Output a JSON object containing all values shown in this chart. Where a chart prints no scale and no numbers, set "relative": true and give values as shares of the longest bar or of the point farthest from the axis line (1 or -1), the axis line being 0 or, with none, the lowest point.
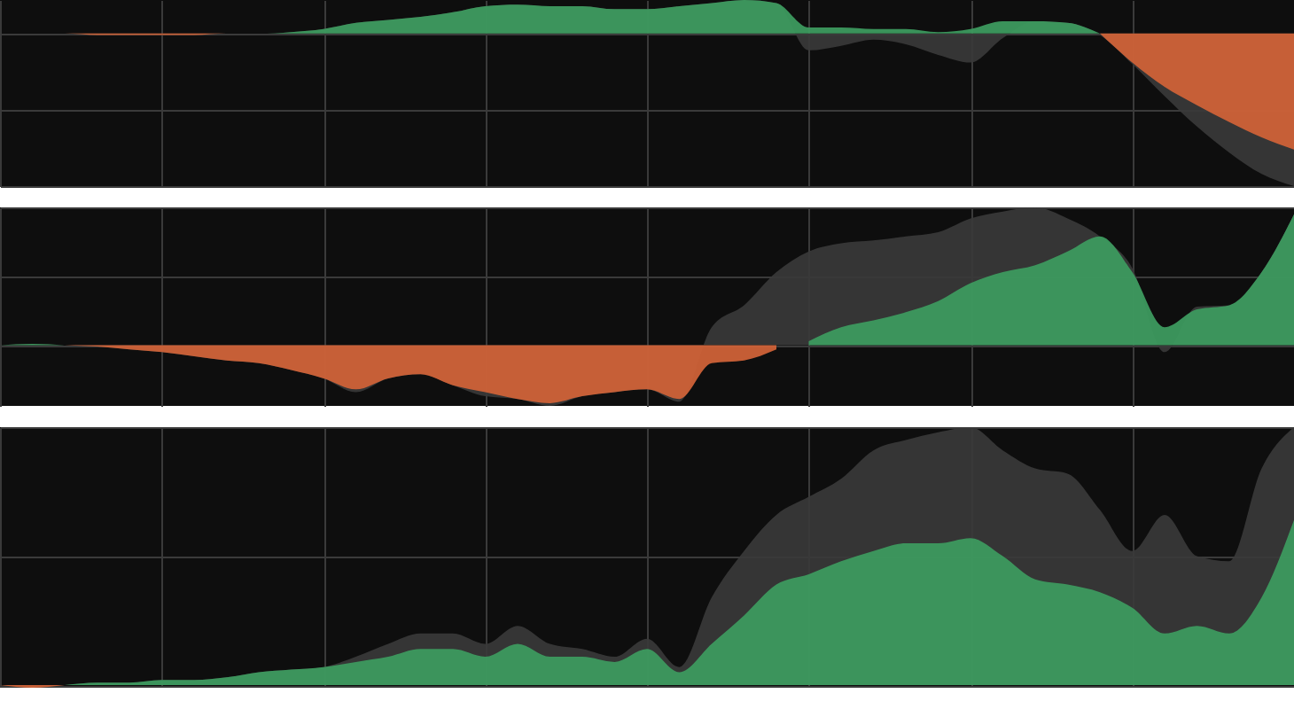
{
  "chart_data": [
    {
      "type": "area",
      "relative": true,
      "grid": true,
      "tick_labels": false,
      "categories": [
        null,
        null,
        null,
        null,
        null,
        null,
        null,
        null,
        null,
        null,
        null,
        null,
        null,
        null,
        null,
        null,
        null,
        null,
        null,
        null,
        null,
        null,
        null,
        null,
        null,
        null,
        null,
        null,
        null,
        null,
        null,
        null,
        null,
        null,
        null,
        null,
        null,
        null,
        null,
        null,
        null
      ],
      "series": [
        {
          "color": "#3a3a3a",
          "values": [
            0,
            0,
            0,
            -0.01,
            -0.01,
            -0.01,
            -0.01,
            0,
            0,
            0.01,
            0.03,
            0.07,
            0.09,
            0.11,
            0.14,
            0.18,
            0.19,
            0.18,
            0.18,
            0.16,
            0.16,
            0.18,
            0.2,
            0.22,
            0.2,
            -0.11,
            -0.08,
            -0.04,
            -0.07,
            -0.14,
            -0.19,
            -0.03,
            0.08,
            0.07,
            -0.01,
            -0.2,
            -0.41,
            -0.61,
            -0.78,
            -0.92,
            -1
          ]
        },
        {
          "color": "#3d9a5f",
          "values": [
            null,
            null,
            null,
            null,
            null,
            null,
            null,
            0,
            0,
            0.01,
            0.03,
            0.07,
            0.09,
            0.11,
            0.14,
            0.18,
            0.19,
            0.18,
            0.18,
            0.16,
            0.16,
            0.18,
            0.2,
            0.22,
            0.2,
            0.04,
            0.04,
            0.03,
            0.03,
            0.01,
            0.03,
            0.08,
            0.08,
            0.07,
            0,
            null,
            null,
            null,
            null,
            null,
            null
          ]
        },
        {
          "color": "#cf6238",
          "values": [
            0,
            0,
            0,
            -0.01,
            -0.01,
            -0.01,
            -0.01,
            0,
            0,
            null,
            null,
            null,
            null,
            null,
            null,
            null,
            null,
            null,
            null,
            null,
            null,
            null,
            null,
            null,
            null,
            null,
            null,
            null,
            null,
            null,
            null,
            null,
            null,
            null,
            0,
            -0.19,
            -0.35,
            -0.47,
            -0.58,
            -0.68,
            -0.76
          ]
        }
      ]
    },
    {
      "type": "area",
      "relative": true,
      "grid": true,
      "tick_labels": false,
      "categories": [
        null,
        null,
        null,
        null,
        null,
        null,
        null,
        null,
        null,
        null,
        null,
        null,
        null,
        null,
        null,
        null,
        null,
        null,
        null,
        null,
        null,
        null,
        null,
        null,
        null,
        null,
        null,
        null,
        null,
        null,
        null,
        null,
        null,
        null,
        null,
        null,
        null,
        null,
        null,
        null,
        null
      ],
      "series": [
        {
          "color": "#3a3a3a",
          "values": [
            0,
            0.01,
            0,
            -0.01,
            -0.03,
            -0.05,
            -0.08,
            -0.11,
            -0.13,
            -0.18,
            -0.24,
            -0.34,
            -0.24,
            -0.21,
            -0.29,
            -0.37,
            -0.39,
            -0.44,
            -0.37,
            -0.34,
            -0.32,
            -0.41,
            0.13,
            0.29,
            0.53,
            0.68,
            0.74,
            0.76,
            0.79,
            0.82,
            0.92,
            0.97,
            1,
            0.92,
            0.79,
            0.56,
            -0.05,
            0.28,
            0.29,
            0.53,
            0.95
          ]
        },
        {
          "color": "#3d9a5f",
          "values": [
            0,
            0.01,
            0,
            null,
            null,
            null,
            null,
            null,
            null,
            null,
            null,
            null,
            null,
            null,
            null,
            null,
            null,
            null,
            null,
            null,
            null,
            null,
            null,
            null,
            null,
            0.03,
            0.13,
            0.18,
            0.24,
            0.32,
            0.45,
            0.53,
            0.58,
            0.68,
            0.79,
            0.53,
            0.13,
            0.26,
            0.29,
            0.53,
            0.95
          ]
        },
        {
          "color": "#cf6238",
          "values": [
            null,
            null,
            0,
            -0.01,
            -0.03,
            -0.05,
            -0.08,
            -0.11,
            -0.13,
            -0.18,
            -0.24,
            -0.32,
            -0.24,
            -0.21,
            -0.29,
            -0.34,
            -0.39,
            -0.42,
            -0.37,
            -0.34,
            -0.32,
            -0.39,
            -0.13,
            -0.11,
            -0.03,
            null,
            null,
            null,
            null,
            null,
            null,
            null,
            null,
            null,
            null,
            null,
            null,
            null,
            null,
            null,
            null
          ]
        }
      ]
    },
    {
      "type": "area",
      "relative": true,
      "grid": true,
      "tick_labels": false,
      "categories": [
        null,
        null,
        null,
        null,
        null,
        null,
        null,
        null,
        null,
        null,
        null,
        null,
        null,
        null,
        null,
        null,
        null,
        null,
        null,
        null,
        null,
        null,
        null,
        null,
        null,
        null,
        null,
        null,
        null,
        null,
        null,
        null,
        null,
        null,
        null,
        null,
        null,
        null,
        null,
        null,
        null
      ],
      "series": [
        {
          "color": "#3a3a3a",
          "values": [
            0,
            -0.01,
            0,
            0.01,
            0.01,
            0.02,
            0.02,
            0.03,
            0.05,
            0.06,
            0.07,
            0.11,
            0.16,
            0.2,
            0.2,
            0.16,
            0.23,
            0.16,
            0.14,
            0.11,
            0.18,
            0.07,
            0.34,
            0.52,
            0.66,
            0.73,
            0.8,
            0.91,
            0.95,
            0.98,
            1,
            0.91,
            0.84,
            0.82,
            0.68,
            0.52,
            0.66,
            0.5,
            0.48,
            0.84,
            1
          ]
        },
        {
          "color": "#3d9a5f",
          "values": [
            null,
            null,
            0,
            0.01,
            0.01,
            0.02,
            0.02,
            0.03,
            0.05,
            0.06,
            0.07,
            0.09,
            0.11,
            0.14,
            0.14,
            0.11,
            0.16,
            0.11,
            0.11,
            0.09,
            0.14,
            0.05,
            0.16,
            0.27,
            0.39,
            0.43,
            0.48,
            0.52,
            0.55,
            0.55,
            0.57,
            0.5,
            0.41,
            0.39,
            0.36,
            0.3,
            0.2,
            0.23,
            0.2,
            0.34,
            0.64
          ]
        },
        {
          "color": "#cf6238",
          "values": [
            0,
            -0.01,
            0,
            null,
            null,
            null,
            null,
            null,
            null,
            null,
            null,
            null,
            null,
            null,
            null,
            null,
            null,
            null,
            null,
            null,
            null,
            null,
            null,
            null,
            null,
            null,
            null,
            null,
            null,
            null,
            null,
            null,
            null,
            null,
            null,
            null,
            null,
            null,
            null,
            null,
            null
          ]
        }
      ]
    }
  ]
}
